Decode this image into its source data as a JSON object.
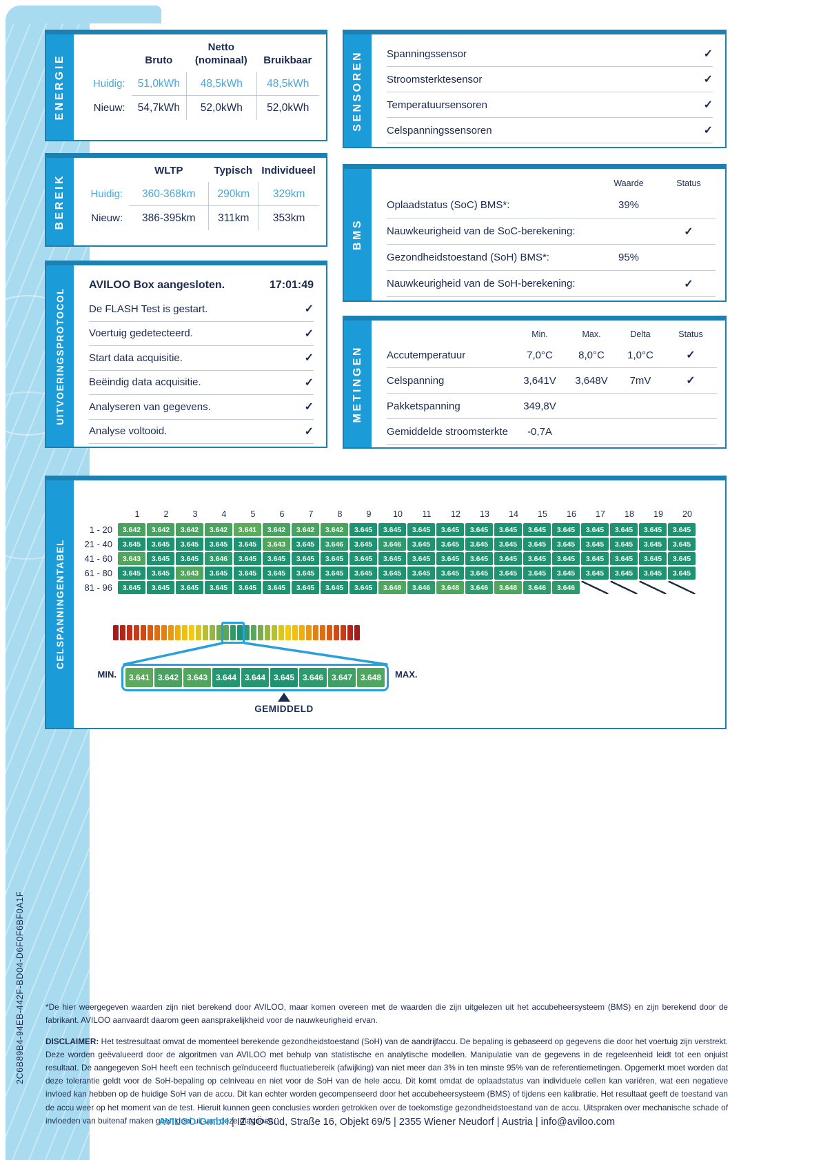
{
  "report": {
    "test_id": "2C6B89B4-94EB-442F-BD04-D6F0F6BF0A1F",
    "icons": {
      "check": "✓"
    },
    "energie": {
      "label": "ENERGIE",
      "col_headers": [
        "Bruto",
        "Netto\n(nominaal)",
        "Bruikbaar"
      ],
      "rows": [
        {
          "label": "Huidig:",
          "values": [
            "51,0kWh",
            "48,5kWh",
            "48,5kWh"
          ],
          "highlight": true
        },
        {
          "label": "Nieuw:",
          "values": [
            "54,7kWh",
            "52,0kWh",
            "52,0kWh"
          ],
          "highlight": false
        }
      ]
    },
    "bereik": {
      "label": "BEREIK",
      "col_headers": [
        "WLTP",
        "Typisch",
        "Individueel"
      ],
      "rows": [
        {
          "label": "Huidig:",
          "values": [
            "360-368km",
            "290km",
            "329km"
          ],
          "highlight": true
        },
        {
          "label": "Nieuw:",
          "values": [
            "386-395km",
            "311km",
            "353km"
          ],
          "highlight": false
        }
      ]
    },
    "protocol": {
      "label": "UITVOERINGSPROTOCOL",
      "header_text": "AVILOO Box aangesloten.",
      "header_time": "17:01:49",
      "steps": [
        "De FLASH Test is gestart.",
        "Voertuig gedetecteerd.",
        "Start data acquisitie.",
        "Beëindig data acquisitie.",
        "Analyseren van gegevens.",
        "Analyse voltooid."
      ]
    },
    "sensoren": {
      "label": "SENSOREN",
      "items": [
        "Spanningssensor",
        "Stroomsterktesensor",
        "Temperatuursensoren",
        "Celspanningssensoren"
      ]
    },
    "bms": {
      "label": "BMS",
      "col_headers": [
        "Waarde",
        "Status"
      ],
      "rows": [
        {
          "label": "Oplaadstatus (SoC) BMS*:",
          "value": "39%",
          "check": false
        },
        {
          "label": "Nauwkeurigheid van de SoC-berekening:",
          "value": "",
          "check": true
        },
        {
          "label": "Gezondheidstoestand (SoH) BMS*:",
          "value": "95%",
          "check": false
        },
        {
          "label": "Nauwkeurigheid van de SoH-berekening:",
          "value": "",
          "check": true
        }
      ]
    },
    "metingen": {
      "label": "METINGEN",
      "col_headers": [
        "Min.",
        "Max.",
        "Delta",
        "Status"
      ],
      "rows": [
        {
          "label": "Accutemperatuur",
          "min": "7,0°C",
          "max": "8,0°C",
          "delta": "1,0°C",
          "check": true
        },
        {
          "label": "Celspanning",
          "min": "3,641V",
          "max": "3,648V",
          "delta": "7mV",
          "check": true
        },
        {
          "label": "Pakketspanning",
          "min": "349,8V",
          "max": "",
          "delta": "",
          "check": false
        },
        {
          "label": "Gemiddelde stroomsterkte",
          "min": "-0,7A",
          "max": "",
          "delta": "",
          "check": false
        }
      ]
    },
    "celltable": {
      "label": "CELSPANNINGENTABEL",
      "col_numbers": [
        "1",
        "2",
        "3",
        "4",
        "5",
        "6",
        "7",
        "8",
        "9",
        "10",
        "11",
        "12",
        "13",
        "14",
        "15",
        "16",
        "17",
        "18",
        "19",
        "20"
      ],
      "rows": [
        {
          "label": "1 - 20",
          "values": [
            "3.642",
            "3.642",
            "3.642",
            "3.642",
            "3.641",
            "3.642",
            "3.642",
            "3.642",
            "3.645",
            "3.645",
            "3.645",
            "3.645",
            "3.645",
            "3.645",
            "3.645",
            "3.645",
            "3.645",
            "3.645",
            "3.645",
            "3.645"
          ]
        },
        {
          "label": "21 - 40",
          "values": [
            "3.645",
            "3.645",
            "3.645",
            "3.645",
            "3.645",
            "3.643",
            "3.645",
            "3.646",
            "3.645",
            "3.646",
            "3.645",
            "3.645",
            "3.645",
            "3.645",
            "3.645",
            "3.645",
            "3.645",
            "3.645",
            "3.645",
            "3.645"
          ]
        },
        {
          "label": "41 - 60",
          "values": [
            "3.643",
            "3.645",
            "3.645",
            "3.646",
            "3.645",
            "3.645",
            "3.645",
            "3.645",
            "3.645",
            "3.645",
            "3.645",
            "3.645",
            "3.645",
            "3.645",
            "3.645",
            "3.645",
            "3.645",
            "3.645",
            "3.645",
            "3.645"
          ]
        },
        {
          "label": "61 - 80",
          "values": [
            "3.645",
            "3.645",
            "3.643",
            "3.645",
            "3.645",
            "3.645",
            "3.645",
            "3.645",
            "3.645",
            "3.645",
            "3.645",
            "3.645",
            "3.645",
            "3.645",
            "3.645",
            "3.645",
            "3.645",
            "3.645",
            "3.645",
            "3.645"
          ]
        },
        {
          "label": "81 - 96",
          "values": [
            "3.645",
            "3.645",
            "3.645",
            "3.645",
            "3.645",
            "3.645",
            "3.645",
            "3.645",
            "3.645",
            "3.648",
            "3.646",
            "3.648",
            "3.646",
            "3.648",
            "3.646",
            "3.646",
            null,
            null,
            null,
            null
          ]
        }
      ],
      "value_colors": {
        "3.641": "#5caa5b",
        "3.642": "#4aa261",
        "3.643": "#51a65e",
        "3.644": "#259770",
        "3.645": "#1e9372",
        "3.646": "#2d9b6c",
        "3.647": "#3fa065",
        "3.648": "#4fa75f"
      },
      "heatbar": {
        "colors": [
          "#a11d1d",
          "#b42419",
          "#c03018",
          "#c73c16",
          "#d04a15",
          "#d65c13",
          "#dd6e12",
          "#e28310",
          "#e8990f",
          "#edae0e",
          "#f0c00d",
          "#f2cc0c",
          "#d8c81e",
          "#b8bf32",
          "#98b544",
          "#78ab52",
          "#57a85c",
          "#2f9b6b",
          "#1d9371",
          "#2f9b6b",
          "#57a85c",
          "#78ab52",
          "#98b544",
          "#b8bf32",
          "#d8c81e",
          "#f2cc0c",
          "#f0c00d",
          "#edae0e",
          "#e8990f",
          "#e28310",
          "#dd6e12",
          "#d65c13",
          "#d04a15",
          "#c73c16",
          "#b42419",
          "#a11d1d"
        ],
        "highlight_start": 16,
        "highlight_count": 3
      },
      "scale": {
        "min_label": "MIN.",
        "max_label": "MAX.",
        "values": [
          "3.641",
          "3.642",
          "3.643",
          "3.644",
          "3.644",
          "3.645",
          "3.646",
          "3.647",
          "3.648"
        ],
        "avg_label": "GEMIDDELD"
      }
    },
    "footer": {
      "footnote": "*De hier weergegeven waarden zijn niet berekend door AVILOO, maar komen overeen met de waarden die zijn uitgelezen uit het accubeheersysteem (BMS) en zijn berekend door de fabrikant. AVILOO aanvaardt daarom geen aansprakelijkheid voor de nauwkeurigheid ervan.",
      "disclaimer_label": "DISCLAIMER:",
      "disclaimer": " Het testresultaat omvat de momenteel berekende gezondheidstoestand (SoH) van de aandrijfaccu. De bepaling is gebaseerd op gegevens die door het voertuig zijn verstrekt. Deze worden geëvalueerd door de algoritmen van AVILOO met behulp van statistische en analytische modellen. Manipulatie van de gegevens in de regeleenheid leidt tot een onjuist resultaat. De aangegeven SoH heeft een technisch geïnduceerd fluctuatiebereik (afwijking) van niet meer dan 3% in ten minste 95% van de referentiemetingen. Opgemerkt moet worden dat deze tolerantie geldt voor de SoH-bepaling op celniveau en niet voor de SoH van de hele accu. Dit komt omdat de oplaadstatus van individuele cellen kan variëren, wat een negatieve invloed kan hebben op de huidige SoH van de accu. Dit kan echter worden gecompenseerd door het accubeheersysteem (BMS) of tijdens een kalibratie. Het resultaat geeft de toestand van de accu weer op het moment van de test. Hieruit kunnen geen conclusies worden getrokken over de toekomstige gezondheidstoestand van de accu. Uitspraken over mechanische schade of invloeden van buitenaf maken geen deel uit van deze diagnose.",
      "address_brand": "AVILOO GmbH",
      "address_rest": " | IZ NÖ-Süd, Straße 16, Objekt 69/5 | 2355 Wiener Neudorf | Austria | info@aviloo.com"
    },
    "colors": {
      "navy_text": "#1b2b52",
      "section_bar_blue": "#1b9cd9",
      "box_border_blue": "#1c80b2",
      "accent_blue": "#2aa0da",
      "highlight_value_blue": "#45a9db",
      "left_band_blue": "#a9dbf0"
    }
  }
}
